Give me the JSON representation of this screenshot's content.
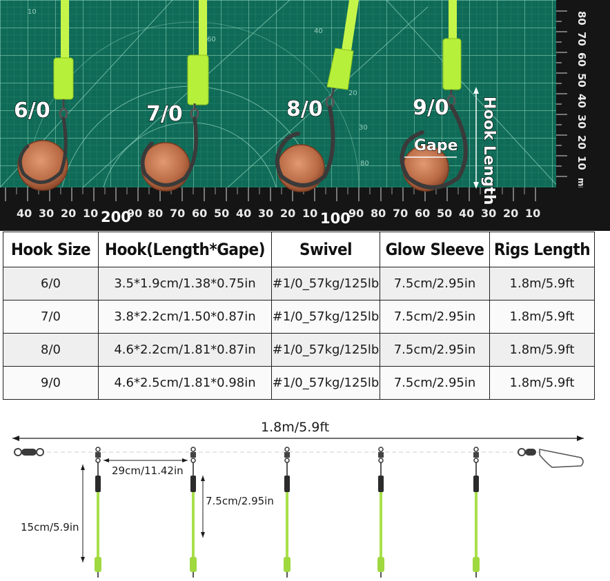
{
  "photo": {
    "hook_labels": [
      "6/0",
      "7/0",
      "8/0",
      "9/0"
    ],
    "gape_label": "Gape",
    "hook_length_label": "Hook Length",
    "ruler_bottom_numbers": [
      "40",
      "30",
      "20",
      "10",
      "200",
      "90",
      "80",
      "70",
      "60",
      "50",
      "40",
      "30",
      "20",
      "10",
      "100",
      "90",
      "80",
      "70",
      "60",
      "50",
      "40",
      "30",
      "20",
      "10"
    ],
    "ruler_right_numbers": [
      "80",
      "70",
      "60",
      "50",
      "40",
      "30",
      "20",
      "10",
      "mm",
      "0"
    ],
    "mat_numbers": [
      "10",
      "20",
      "30",
      "40",
      "60",
      "80"
    ],
    "colors": {
      "mat": "#0f6b57",
      "grid": "#8fd3bd",
      "sleeve": "#b6f03a",
      "ruler": "#151515",
      "penny": "#c07550"
    }
  },
  "table": {
    "headers": [
      "Hook Size",
      "Hook(Length*Gape)",
      "Swivel",
      "Glow Sleeve",
      "Rigs Length"
    ],
    "rows": [
      [
        "6/0",
        "3.5*1.9cm/1.38*0.75in",
        "#1/0_57kg/125lb",
        "7.5cm/2.95in",
        "1.8m/5.9ft"
      ],
      [
        "7/0",
        "3.8*2.2cm/1.50*0.87in",
        "#1/0_57kg/125lb",
        "7.5cm/2.95in",
        "1.8m/5.9ft"
      ],
      [
        "8/0",
        "4.6*2.2cm/1.81*0.87in",
        "#1/0_57kg/125lb",
        "7.5cm/2.95in",
        "1.8m/5.9ft"
      ],
      [
        "9/0",
        "4.6*2.5cm/1.81*0.98in",
        "#1/0_57kg/125lb",
        "7.5cm/2.95in",
        "1.8m/5.9ft"
      ]
    ]
  },
  "rig": {
    "total_length": "1.8m/5.9ft",
    "spacing": "29cm/11.42in",
    "sleeve_length": "7.5cm/2.95in",
    "dropper_length": "15cm/5.9in",
    "colors": {
      "leader": "#2a2a2a",
      "sleeve": "#a8e04a",
      "hook": "#555555"
    }
  }
}
